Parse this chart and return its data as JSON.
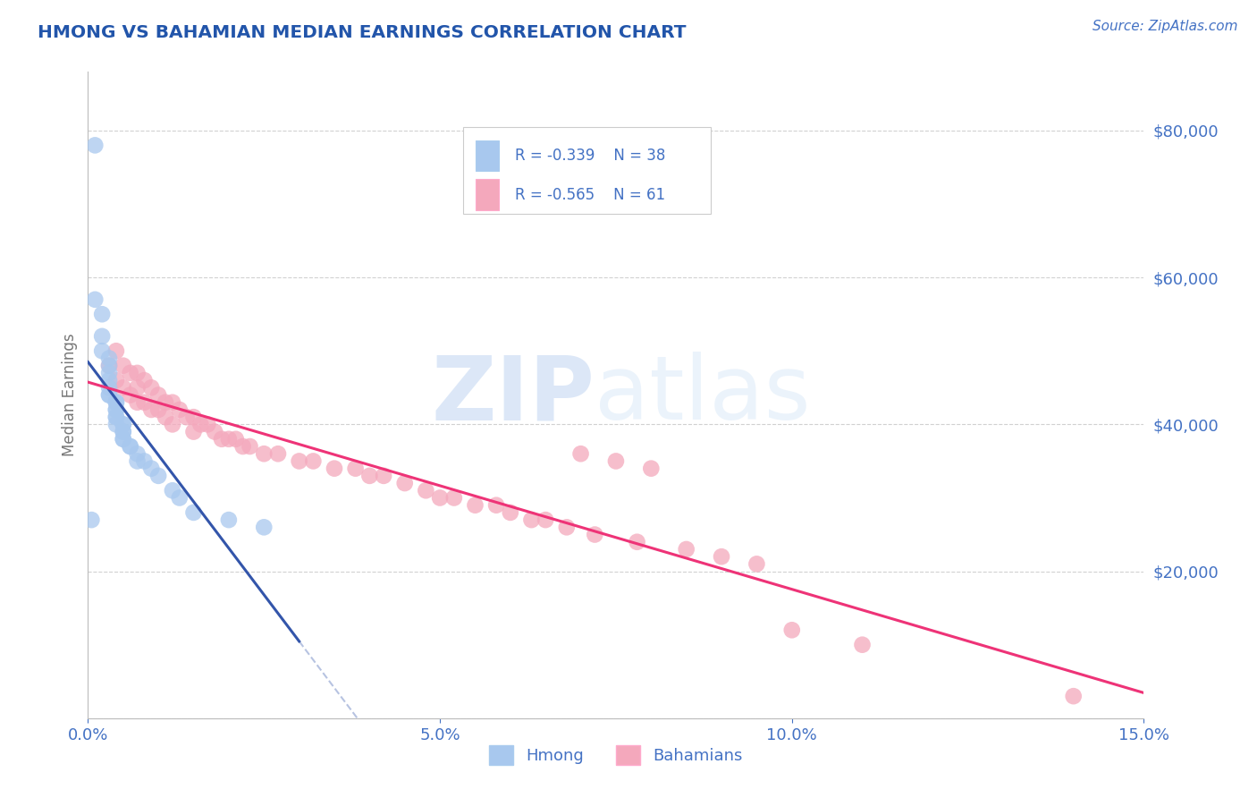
{
  "title": "HMONG VS BAHAMIAN MEDIAN EARNINGS CORRELATION CHART",
  "source_text": "Source: ZipAtlas.com",
  "ylabel": "Median Earnings",
  "xlim": [
    0.0,
    0.15
  ],
  "ylim": [
    0,
    88000
  ],
  "x_ticks": [
    0.0,
    0.05,
    0.1,
    0.15
  ],
  "x_tick_labels": [
    "0.0%",
    "5.0%",
    "10.0%",
    "15.0%"
  ],
  "y_ticks": [
    0,
    20000,
    40000,
    60000,
    80000
  ],
  "y_tick_labels": [
    "",
    "$20,000",
    "$40,000",
    "$60,000",
    "$80,000"
  ],
  "hmong_R": -0.339,
  "hmong_N": 38,
  "bahamian_R": -0.565,
  "bahamian_N": 61,
  "hmong_color": "#A8C8EE",
  "bahamian_color": "#F4A8BC",
  "hmong_line_color": "#3355AA",
  "bahamian_line_color": "#EE3377",
  "title_color": "#2255AA",
  "axis_color": "#4472C4",
  "watermark_zip": "ZIP",
  "watermark_atlas": "atlas",
  "background_color": "#FFFFFF",
  "hmong_x": [
    0.001,
    0.001,
    0.002,
    0.002,
    0.002,
    0.003,
    0.003,
    0.003,
    0.003,
    0.003,
    0.003,
    0.003,
    0.004,
    0.004,
    0.004,
    0.004,
    0.004,
    0.004,
    0.004,
    0.005,
    0.005,
    0.005,
    0.005,
    0.005,
    0.005,
    0.006,
    0.006,
    0.007,
    0.007,
    0.008,
    0.009,
    0.01,
    0.012,
    0.013,
    0.015,
    0.02,
    0.025,
    0.0005
  ],
  "hmong_y": [
    78000,
    57000,
    55000,
    52000,
    50000,
    49000,
    48000,
    47000,
    46000,
    45000,
    44000,
    44000,
    43000,
    43000,
    42000,
    42000,
    41000,
    41000,
    40000,
    40000,
    40000,
    39000,
    39000,
    38000,
    38000,
    37000,
    37000,
    36000,
    35000,
    35000,
    34000,
    33000,
    31000,
    30000,
    28000,
    27000,
    26000,
    27000
  ],
  "bahamian_x": [
    0.003,
    0.004,
    0.004,
    0.005,
    0.005,
    0.006,
    0.006,
    0.007,
    0.007,
    0.007,
    0.008,
    0.008,
    0.009,
    0.009,
    0.01,
    0.01,
    0.011,
    0.011,
    0.012,
    0.012,
    0.013,
    0.014,
    0.015,
    0.015,
    0.016,
    0.017,
    0.018,
    0.019,
    0.02,
    0.021,
    0.022,
    0.023,
    0.025,
    0.027,
    0.03,
    0.032,
    0.035,
    0.038,
    0.04,
    0.042,
    0.045,
    0.048,
    0.05,
    0.052,
    0.055,
    0.058,
    0.06,
    0.063,
    0.065,
    0.068,
    0.07,
    0.072,
    0.075,
    0.078,
    0.08,
    0.085,
    0.09,
    0.095,
    0.1,
    0.11,
    0.14
  ],
  "bahamian_y": [
    48000,
    50000,
    46000,
    48000,
    45000,
    47000,
    44000,
    47000,
    45000,
    43000,
    46000,
    43000,
    45000,
    42000,
    44000,
    42000,
    43000,
    41000,
    43000,
    40000,
    42000,
    41000,
    41000,
    39000,
    40000,
    40000,
    39000,
    38000,
    38000,
    38000,
    37000,
    37000,
    36000,
    36000,
    35000,
    35000,
    34000,
    34000,
    33000,
    33000,
    32000,
    31000,
    30000,
    30000,
    29000,
    29000,
    28000,
    27000,
    27000,
    26000,
    36000,
    25000,
    35000,
    24000,
    34000,
    23000,
    22000,
    21000,
    12000,
    10000,
    3000
  ]
}
